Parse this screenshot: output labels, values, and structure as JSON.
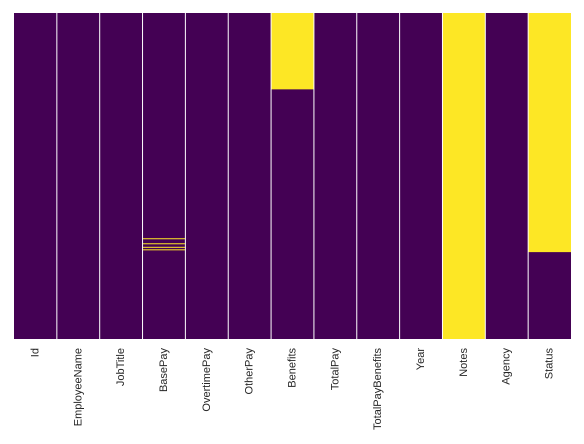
{
  "chart_data": {
    "type": "heatmap",
    "title": "",
    "xlabel": "",
    "ylabel": "",
    "columns": [
      "Id",
      "EmployeeName",
      "JobTitle",
      "BasePay",
      "OvertimePay",
      "OtherPay",
      "Benefits",
      "TotalPay",
      "TotalPayBenefits",
      "Year",
      "Notes",
      "Agency",
      "Status"
    ],
    "row_fraction_axis": [
      0,
      1
    ],
    "missing_color": "#FDE725",
    "present_color": "#440154",
    "grid_color": "#ffffff",
    "missing_ranges": {
      "Id": [],
      "EmployeeName": [],
      "JobTitle": [],
      "BasePay": [
        [
          0.6909,
          0.694
        ],
        [
          0.7063,
          0.7094
        ],
        [
          0.7172,
          0.7203
        ],
        [
          0.7249,
          0.728
        ]
      ],
      "OvertimePay": [],
      "OtherPay": [],
      "Benefits": [
        [
          0.0,
          0.2342
        ]
      ],
      "TotalPay": [],
      "TotalPayBenefits": [],
      "Year": [],
      "Notes": [
        [
          0.0,
          1.0
        ]
      ],
      "Agency": [],
      "Status": [
        [
          0.0,
          0.7335
        ]
      ]
    }
  }
}
